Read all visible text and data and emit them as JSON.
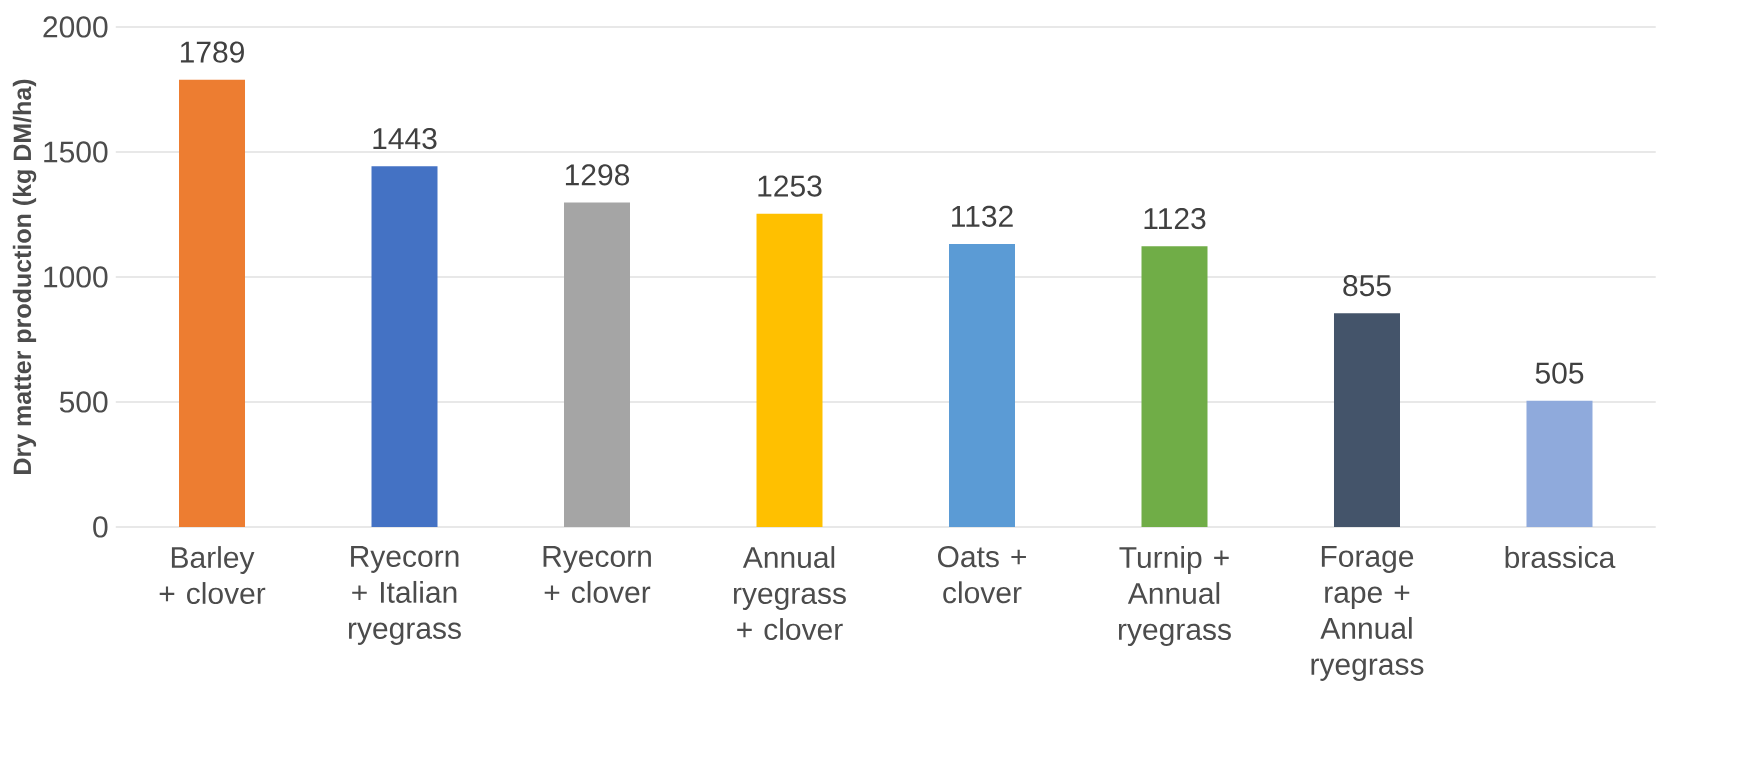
{
  "chart_data": {
    "type": "bar",
    "ylabel": "Dry matter production (kg DM/ha)",
    "categories": [
      "Barley + clover",
      "Ryecorn + Italian ryegrass",
      "Ryecorn + clover",
      "Annual ryegrass + clover",
      "Oats + clover",
      "Turnip + Annual ryegrass",
      "Forage rape + Annual ryegrass",
      "brassica"
    ],
    "values": [
      1789,
      1443,
      1298,
      1253,
      1132,
      1123,
      855,
      505
    ],
    "colors": [
      "#ed7d31",
      "#4472c4",
      "#a5a5a5",
      "#ffc000",
      "#5b9bd5",
      "#70ad47",
      "#44546a",
      "#8faadc"
    ],
    "ylim": [
      0,
      2000
    ],
    "yticks": [
      0,
      500,
      1000,
      1500,
      2000
    ],
    "grid": "y",
    "data_labels": true
  }
}
